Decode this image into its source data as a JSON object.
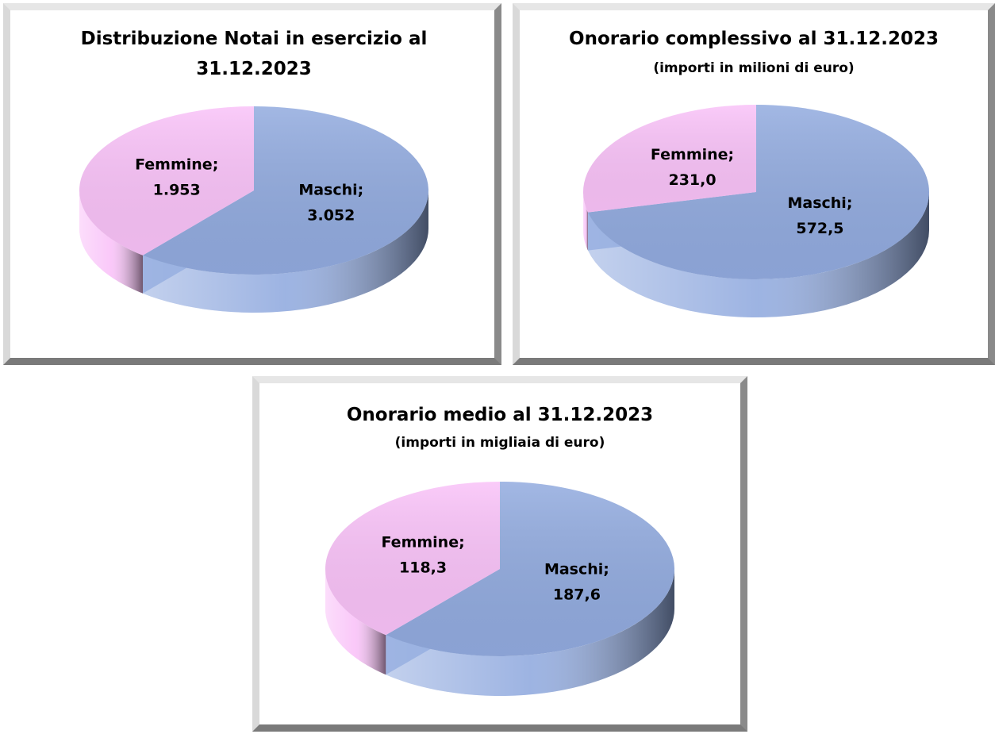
{
  "chart_data": [
    {
      "type": "pie",
      "title": "Distribuzione Notai in esercizio al 31.12.2023",
      "categories": [
        "Femmine;",
        "Maschi;"
      ],
      "values": [
        1953,
        3052
      ],
      "value_labels": [
        "1.953",
        "3.052"
      ],
      "colors": [
        "#f9c2f8",
        "#92abdf"
      ]
    },
    {
      "type": "pie",
      "title": "Onorario complessivo al 31.12.2023",
      "subtitle": "(importi in milioni di euro)",
      "categories": [
        "Femmine;",
        "Maschi;"
      ],
      "values": [
        231.0,
        572.5
      ],
      "value_labels": [
        "231,0",
        "572,5"
      ],
      "colors": [
        "#f9c2f8",
        "#92abdf"
      ]
    },
    {
      "type": "pie",
      "title": "Onorario medio al 31.12.2023",
      "subtitle": "(importi in migliaia di euro)",
      "categories": [
        "Femmine;",
        "Maschi;"
      ],
      "values": [
        118.3,
        187.6
      ],
      "value_labels": [
        "118,3",
        "187,6"
      ],
      "colors": [
        "#f9c2f8",
        "#92abdf"
      ]
    }
  ]
}
